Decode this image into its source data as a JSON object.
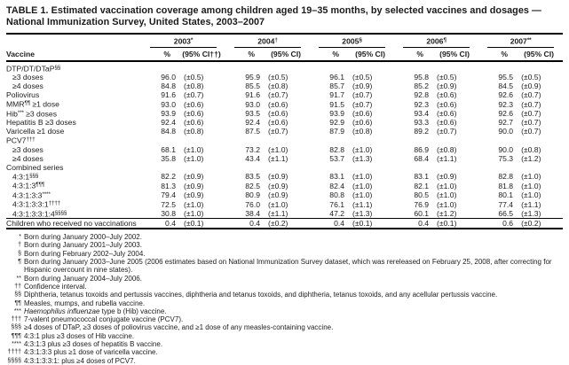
{
  "page": {
    "title": "TABLE 1. Estimated vaccination coverage among children aged 19–35 months, by selected vaccines and dosages — National Immunization Survey, United States, 2003–2007"
  },
  "table": {
    "vaccine_col_header": "Vaccine",
    "pct_header": "%",
    "year_groups": [
      {
        "year": "2003",
        "marker": "*",
        "ci_header": "(95% CI††)"
      },
      {
        "year": "2004",
        "marker": "†",
        "ci_header": "(95% CI)"
      },
      {
        "year": "2005",
        "marker": "§",
        "ci_header": "(95% CI)"
      },
      {
        "year": "2006",
        "marker": "¶",
        "ci_header": "(95% CI)"
      },
      {
        "year": "2007",
        "marker": "**",
        "ci_header": "(95% CI)"
      }
    ],
    "rows": [
      {
        "label": "DTP/DT/DTaP",
        "sup": "§§",
        "group": true
      },
      {
        "label": "≥3 doses",
        "indent": true,
        "values": [
          [
            "96.0",
            "(±0.5)"
          ],
          [
            "95.9",
            "(±0.5)"
          ],
          [
            "96.1",
            "(±0.5)"
          ],
          [
            "95.8",
            "(±0.5)"
          ],
          [
            "95.5",
            "(±0.5)"
          ]
        ]
      },
      {
        "label": "≥4 doses",
        "indent": true,
        "values": [
          [
            "84.8",
            "(±0.8)"
          ],
          [
            "85.5",
            "(±0.8)"
          ],
          [
            "85.7",
            "(±0.9)"
          ],
          [
            "85.2",
            "(±0.9)"
          ],
          [
            "84.5",
            "(±0.9)"
          ]
        ]
      },
      {
        "label": "Poliovirus",
        "values": [
          [
            "91.6",
            "(±0.7)"
          ],
          [
            "91.6",
            "(±0.7)"
          ],
          [
            "91.7",
            "(±0.7)"
          ],
          [
            "92.8",
            "(±0.6)"
          ],
          [
            "92.6",
            "(±0.7)"
          ]
        ]
      },
      {
        "label": "MMR",
        "sup": "¶¶",
        "after": " ≥1 dose",
        "values": [
          [
            "93.0",
            "(±0.6)"
          ],
          [
            "93.0",
            "(±0.6)"
          ],
          [
            "91.5",
            "(±0.7)"
          ],
          [
            "92.3",
            "(±0.6)"
          ],
          [
            "92.3",
            "(±0.7)"
          ]
        ]
      },
      {
        "label": "Hib",
        "sup": "***",
        "after": " ≥3 doses",
        "values": [
          [
            "93.9",
            "(±0.6)"
          ],
          [
            "93.5",
            "(±0.6)"
          ],
          [
            "93.9",
            "(±0.6)"
          ],
          [
            "93.4",
            "(±0.6)"
          ],
          [
            "92.6",
            "(±0.7)"
          ]
        ]
      },
      {
        "label": "Hepatitis B ≥3 doses",
        "values": [
          [
            "92.4",
            "(±0.6)"
          ],
          [
            "92.4",
            "(±0.6)"
          ],
          [
            "92.9",
            "(±0.6)"
          ],
          [
            "93.3",
            "(±0.6)"
          ],
          [
            "92.7",
            "(±0.7)"
          ]
        ]
      },
      {
        "label": "Varicella ≥1 dose",
        "values": [
          [
            "84.8",
            "(±0.8)"
          ],
          [
            "87.5",
            "(±0.7)"
          ],
          [
            "87.9",
            "(±0.8)"
          ],
          [
            "89.2",
            "(±0.7)"
          ],
          [
            "90.0",
            "(±0.7)"
          ]
        ]
      },
      {
        "label": "PCV7",
        "sup": "†††",
        "group": true
      },
      {
        "label": "≥3 doses",
        "indent": true,
        "values": [
          [
            "68.1",
            "(±1.0)"
          ],
          [
            "73.2",
            "(±1.0)"
          ],
          [
            "82.8",
            "(±1.0)"
          ],
          [
            "86.9",
            "(±0.8)"
          ],
          [
            "90.0",
            "(±0.8)"
          ]
        ]
      },
      {
        "label": "≥4 doses",
        "indent": true,
        "values": [
          [
            "35.8",
            "(±1.0)"
          ],
          [
            "43.4",
            "(±1.1)"
          ],
          [
            "53.7",
            "(±1.3)"
          ],
          [
            "68.4",
            "(±1.1)"
          ],
          [
            "75.3",
            "(±1.2)"
          ]
        ]
      },
      {
        "label": "Combined series",
        "group": true
      },
      {
        "label": "4:3:1",
        "sup": "§§§",
        "indent": true,
        "values": [
          [
            "82.2",
            "(±0.9)"
          ],
          [
            "83.5",
            "(±0.9)"
          ],
          [
            "83.1",
            "(±1.0)"
          ],
          [
            "83.1",
            "(±0.9)"
          ],
          [
            "82.8",
            "(±1.0)"
          ]
        ]
      },
      {
        "label": "4:3:1:3",
        "sup": "¶¶¶",
        "indent": true,
        "values": [
          [
            "81.3",
            "(±0.9)"
          ],
          [
            "82.5",
            "(±0.9)"
          ],
          [
            "82.4",
            "(±1.0)"
          ],
          [
            "82.1",
            "(±1.0)"
          ],
          [
            "81.8",
            "(±1.0)"
          ]
        ]
      },
      {
        "label": "4:3:1:3:3",
        "sup": "****",
        "indent": true,
        "values": [
          [
            "79.4",
            "(±0.9)"
          ],
          [
            "80.9",
            "(±0.9)"
          ],
          [
            "80.8",
            "(±1.0)"
          ],
          [
            "80.5",
            "(±1.0)"
          ],
          [
            "80.1",
            "(±1.0)"
          ]
        ]
      },
      {
        "label": "4:3:1:3:3:1",
        "sup": "††††",
        "indent": true,
        "values": [
          [
            "72.5",
            "(±1.0)"
          ],
          [
            "76.0",
            "(±1.0)"
          ],
          [
            "76.1",
            "(±1.1)"
          ],
          [
            "76.9",
            "(±1.0)"
          ],
          [
            "77.4",
            "(±1.1)"
          ]
        ]
      },
      {
        "label": "4:3:1:3:3:1:4",
        "sup": "§§§§",
        "indent": true,
        "values": [
          [
            "30.8",
            "(±1.0)"
          ],
          [
            "38.4",
            "(±1.1)"
          ],
          [
            "47.2",
            "(±1.3)"
          ],
          [
            "60.1",
            "(±1.2)"
          ],
          [
            "66.5",
            "(±1.3)"
          ]
        ]
      },
      {
        "label": "Children who received no vaccinations",
        "topline": true,
        "values": [
          [
            "0.4",
            "(±0.1)"
          ],
          [
            "0.4",
            "(±0.2)"
          ],
          [
            "0.4",
            "(±0.1)"
          ],
          [
            "0.4",
            "(±0.1)"
          ],
          [
            "0.6",
            "(±0.2)"
          ]
        ]
      }
    ]
  },
  "footnotes": [
    {
      "marker": "*",
      "parts": [
        {
          "t": "Born during January 2000–July 2002."
        }
      ]
    },
    {
      "marker": "†",
      "parts": [
        {
          "t": "Born during January 2001–July 2003."
        }
      ]
    },
    {
      "marker": "§",
      "parts": [
        {
          "t": "Born during February 2002–July 2004."
        }
      ]
    },
    {
      "marker": "¶",
      "parts": [
        {
          "t": "Born during January 2003–June 2005 (2006 estimates based on National Immunization Survey dataset, which was rereleased on February 25, 2008, after correcting for Hispanic overcount in nine states)."
        }
      ]
    },
    {
      "marker": "**",
      "parts": [
        {
          "t": "Born during January 2004–July 2006."
        }
      ]
    },
    {
      "marker": "††",
      "parts": [
        {
          "t": "Confidence interval."
        }
      ]
    },
    {
      "marker": "§§",
      "parts": [
        {
          "t": "Diphtheria, tetanus toxoids and pertussis vaccines, diphtheria and tetanus toxoids, and diphtheria, tetanus toxoids, and any acellular pertussis vaccine."
        }
      ]
    },
    {
      "marker": "¶¶",
      "parts": [
        {
          "t": "Measles, mumps, and rubella vaccine."
        }
      ]
    },
    {
      "marker": "***",
      "parts": [
        {
          "t": "Haemophilus influenzae",
          "i": true
        },
        {
          "t": " type b (Hib) vaccine."
        }
      ]
    },
    {
      "marker": "†††",
      "parts": [
        {
          "t": "7-valent pneumococcal conjugate vaccine (PCV7)."
        }
      ]
    },
    {
      "marker": "§§§",
      "parts": [
        {
          "t": "≥4 doses of DTaP, ≥3 doses of poliovirus vaccine, and ≥1 dose of any measles-containing vaccine."
        }
      ]
    },
    {
      "marker": "¶¶¶",
      "parts": [
        {
          "t": "4:3:1 plus ≥3 doses of Hib vaccine."
        }
      ]
    },
    {
      "marker": "****",
      "parts": [
        {
          "t": "4:3:1:3 plus ≥3 doses of hepatitis B vaccine."
        }
      ]
    },
    {
      "marker": "††††",
      "parts": [
        {
          "t": "4:3:1:3:3 plus ≥1 dose of varicella vaccine."
        }
      ]
    },
    {
      "marker": "§§§§",
      "parts": [
        {
          "t": "4:3:1:3:3:1: plus ≥4 doses of PCV7."
        }
      ]
    }
  ],
  "colors": {
    "background": "#ffffff",
    "text": "#1c1c1c",
    "rule": "#000000"
  }
}
